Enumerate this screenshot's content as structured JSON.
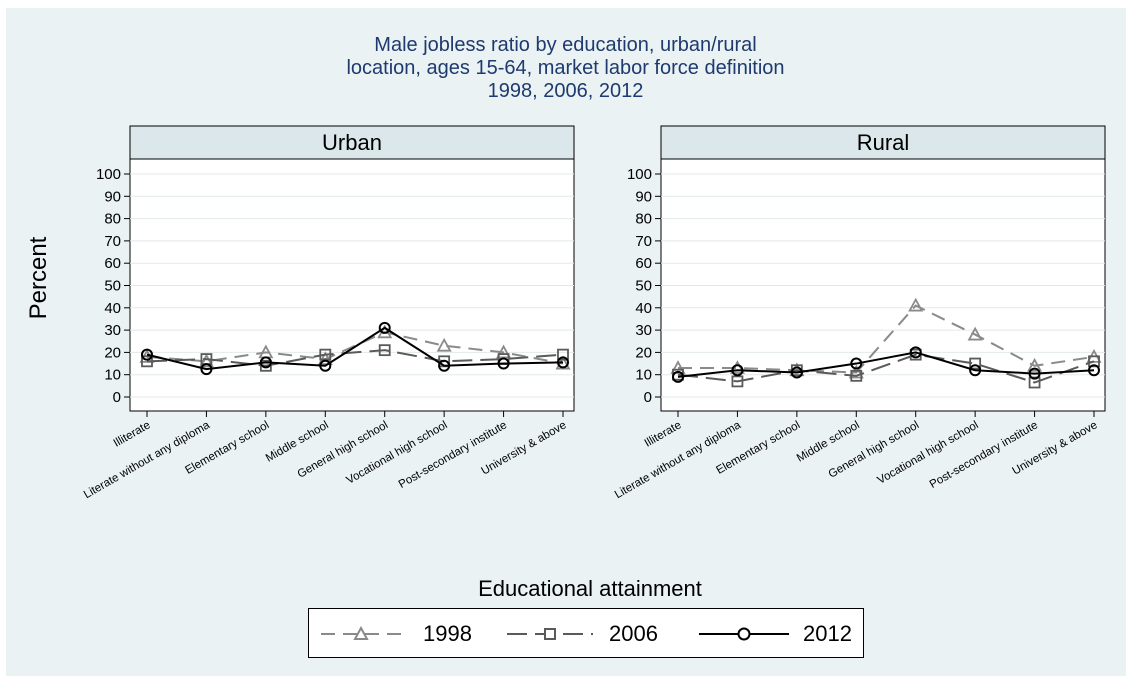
{
  "chart_data": {
    "type": "line",
    "title_lines": [
      "Male jobless ratio by education, urban/rural",
      "location, ages 15-64, market labor force definition",
      "1998, 2006, 2012"
    ],
    "ylabel": "Percent",
    "xlabel": "Educational attainment",
    "ylim": [
      0,
      100
    ],
    "yticks": [
      "0",
      "10",
      "20",
      "30",
      "40",
      "50",
      "60",
      "70",
      "80",
      "90",
      "100"
    ],
    "grid": true,
    "legend_position": "bottom",
    "categories": [
      "Illiterate",
      "Literate without any diploma",
      "Elementary school",
      "Middle school",
      "General high school",
      "Vocational high school",
      "Post-secondary institute",
      "University & above"
    ],
    "panels": [
      {
        "name": "Urban",
        "series": [
          {
            "name": "1998",
            "marker": "triangle",
            "values": [
              18,
              16,
              20,
              17,
              29,
              23,
              20,
              15
            ]
          },
          {
            "name": "2006",
            "marker": "square",
            "values": [
              16,
              17,
              14,
              19,
              21,
              16,
              17,
              19
            ]
          },
          {
            "name": "2012",
            "marker": "circle",
            "values": [
              19,
              12.5,
              15.5,
              14,
              31,
              14,
              15,
              15.5
            ]
          }
        ]
      },
      {
        "name": "Rural",
        "series": [
          {
            "name": "1998",
            "marker": "triangle",
            "values": [
              13,
              13,
              12,
              11,
              41,
              28,
              14,
              18
            ]
          },
          {
            "name": "2006",
            "marker": "square",
            "values": [
              10,
              7,
              12,
              9.5,
              19,
              15,
              6.5,
              16
            ]
          },
          {
            "name": "2012",
            "marker": "circle",
            "values": [
              9,
              12,
              11,
              15,
              20,
              12,
              10.5,
              12
            ]
          }
        ]
      }
    ],
    "colors": {
      "1998": "#8a8a8a",
      "2006": "#5a5a5a",
      "2012": "#000000",
      "background": "#eaf2f3",
      "header": "#dbe7ea",
      "title": "#1e3a6e"
    }
  },
  "legend": {
    "items": [
      {
        "label": "1998"
      },
      {
        "label": "2006"
      },
      {
        "label": "2012"
      }
    ]
  }
}
